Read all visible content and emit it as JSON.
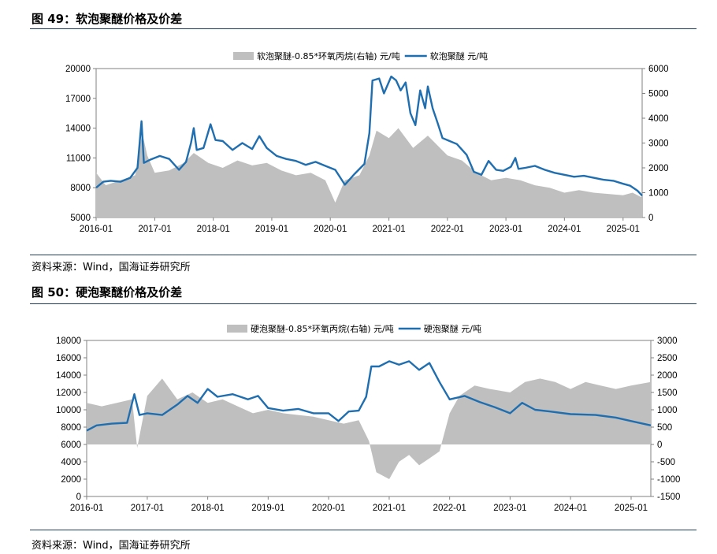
{
  "figures": [
    {
      "title": "图 49：软泡聚醚价格及价差",
      "source": "资料来源：Wind，国海证券研究所"
    },
    {
      "title": "图 50：硬泡聚醚价格及价差",
      "source": "资料来源：Wind，国海证券研究所"
    }
  ],
  "colors": {
    "area": "#bfbfbf",
    "line": "#1f6eb0",
    "rule": "#1f3a5f"
  },
  "chart_data": [
    {
      "type": "line",
      "x_ticks": [
        "2016-01",
        "2017-01",
        "2018-01",
        "2019-01",
        "2020-01",
        "2021-01",
        "2022-01",
        "2023-01",
        "2024-01",
        "2025-01"
      ],
      "x_range": [
        "2016-01-01",
        "2025-04-30"
      ],
      "y_left": {
        "min": 5000,
        "max": 20000,
        "ticks": [
          5000,
          8000,
          11000,
          14000,
          17000,
          20000
        ]
      },
      "y_right": {
        "min": 0,
        "max": 6000,
        "ticks": [
          0,
          1000,
          2000,
          3000,
          4000,
          5000,
          6000
        ]
      },
      "legend_position": "top-center",
      "series": [
        {
          "name": "软泡聚醚-0.85*环氧丙烷(右轴) 元/吨",
          "kind": "area",
          "axis": "right",
          "points": [
            [
              "2016-01-01",
              1800
            ],
            [
              "2016-03-01",
              1300
            ],
            [
              "2016-06-01",
              1500
            ],
            [
              "2016-09-01",
              1700
            ],
            [
              "2016-10-15",
              3400
            ],
            [
              "2016-11-15",
              2500
            ],
            [
              "2017-01-01",
              1800
            ],
            [
              "2017-04-01",
              1900
            ],
            [
              "2017-07-01",
              2200
            ],
            [
              "2017-09-01",
              2600
            ],
            [
              "2017-12-01",
              2200
            ],
            [
              "2018-03-01",
              2000
            ],
            [
              "2018-06-01",
              2300
            ],
            [
              "2018-09-01",
              2100
            ],
            [
              "2018-12-01",
              2200
            ],
            [
              "2019-03-01",
              1900
            ],
            [
              "2019-06-01",
              1700
            ],
            [
              "2019-09-01",
              1800
            ],
            [
              "2019-12-01",
              1500
            ],
            [
              "2020-02-01",
              600
            ],
            [
              "2020-04-01",
              1500
            ],
            [
              "2020-07-01",
              1700
            ],
            [
              "2020-09-01",
              2500
            ],
            [
              "2020-10-15",
              3500
            ],
            [
              "2021-01-01",
              3200
            ],
            [
              "2021-03-01",
              3600
            ],
            [
              "2021-06-01",
              2800
            ],
            [
              "2021-09-01",
              3300
            ],
            [
              "2021-11-01",
              2900
            ],
            [
              "2022-01-01",
              2500
            ],
            [
              "2022-04-01",
              2300
            ],
            [
              "2022-07-01",
              1800
            ],
            [
              "2022-10-01",
              1500
            ],
            [
              "2023-01-01",
              1600
            ],
            [
              "2023-04-01",
              1500
            ],
            [
              "2023-07-01",
              1300
            ],
            [
              "2023-10-01",
              1200
            ],
            [
              "2024-01-01",
              1000
            ],
            [
              "2024-04-01",
              1100
            ],
            [
              "2024-07-01",
              1000
            ],
            [
              "2024-10-01",
              950
            ],
            [
              "2025-01-01",
              900
            ],
            [
              "2025-03-01",
              1000
            ],
            [
              "2025-04-30",
              800
            ]
          ]
        },
        {
          "name": "软泡聚醚 元/吨",
          "kind": "line",
          "axis": "left",
          "points": [
            [
              "2016-01-01",
              8000
            ],
            [
              "2016-02-15",
              8600
            ],
            [
              "2016-04-01",
              8700
            ],
            [
              "2016-06-01",
              8600
            ],
            [
              "2016-08-01",
              9000
            ],
            [
              "2016-09-15",
              10000
            ],
            [
              "2016-10-10",
              14700
            ],
            [
              "2016-10-25",
              10500
            ],
            [
              "2016-12-01",
              10800
            ],
            [
              "2017-02-01",
              11200
            ],
            [
              "2017-04-01",
              10900
            ],
            [
              "2017-06-01",
              9800
            ],
            [
              "2017-07-15",
              10600
            ],
            [
              "2017-08-15",
              12500
            ],
            [
              "2017-09-01",
              14000
            ],
            [
              "2017-09-20",
              11800
            ],
            [
              "2017-11-01",
              12000
            ],
            [
              "2017-12-15",
              14400
            ],
            [
              "2018-01-15",
              12800
            ],
            [
              "2018-03-01",
              12700
            ],
            [
              "2018-05-01",
              11800
            ],
            [
              "2018-07-01",
              12500
            ],
            [
              "2018-09-01",
              11900
            ],
            [
              "2018-10-15",
              13200
            ],
            [
              "2018-12-01",
              12000
            ],
            [
              "2019-02-01",
              11200
            ],
            [
              "2019-04-01",
              10900
            ],
            [
              "2019-06-01",
              10700
            ],
            [
              "2019-08-01",
              10300
            ],
            [
              "2019-10-01",
              10600
            ],
            [
              "2019-12-01",
              10200
            ],
            [
              "2020-02-01",
              9800
            ],
            [
              "2020-04-01",
              8300
            ],
            [
              "2020-06-01",
              9400
            ],
            [
              "2020-08-01",
              10400
            ],
            [
              "2020-09-01",
              13500
            ],
            [
              "2020-09-20",
              18800
            ],
            [
              "2020-11-01",
              19000
            ],
            [
              "2020-12-01",
              17500
            ],
            [
              "2021-01-15",
              19200
            ],
            [
              "2021-02-15",
              18800
            ],
            [
              "2021-03-15",
              17800
            ],
            [
              "2021-04-15",
              18600
            ],
            [
              "2021-05-15",
              15500
            ],
            [
              "2021-06-15",
              14300
            ],
            [
              "2021-07-15",
              17800
            ],
            [
              "2021-08-15",
              16000
            ],
            [
              "2021-09-01",
              18200
            ],
            [
              "2021-10-01",
              16000
            ],
            [
              "2021-11-01",
              14500
            ],
            [
              "2021-12-01",
              13000
            ],
            [
              "2022-01-15",
              12700
            ],
            [
              "2022-03-01",
              12400
            ],
            [
              "2022-05-01",
              11300
            ],
            [
              "2022-06-15",
              9600
            ],
            [
              "2022-08-01",
              9300
            ],
            [
              "2022-09-15",
              10700
            ],
            [
              "2022-11-01",
              9800
            ],
            [
              "2022-12-15",
              9700
            ],
            [
              "2023-02-01",
              10100
            ],
            [
              "2023-03-01",
              11000
            ],
            [
              "2023-03-20",
              9900
            ],
            [
              "2023-05-01",
              10000
            ],
            [
              "2023-07-01",
              10200
            ],
            [
              "2023-09-01",
              9800
            ],
            [
              "2023-11-01",
              9500
            ],
            [
              "2024-01-01",
              9300
            ],
            [
              "2024-03-01",
              9100
            ],
            [
              "2024-05-01",
              9200
            ],
            [
              "2024-07-01",
              9000
            ],
            [
              "2024-09-01",
              8800
            ],
            [
              "2024-11-01",
              8700
            ],
            [
              "2025-01-01",
              8400
            ],
            [
              "2025-02-15",
              8200
            ],
            [
              "2025-04-01",
              7700
            ],
            [
              "2025-04-30",
              7200
            ]
          ]
        }
      ]
    },
    {
      "type": "line",
      "x_ticks": [
        "2016-01",
        "2017-01",
        "2018-01",
        "2019-01",
        "2020-01",
        "2021-01",
        "2022-01",
        "2023-01",
        "2024-01",
        "2025-01"
      ],
      "x_range": [
        "2016-01-01",
        "2025-04-30"
      ],
      "y_left": {
        "min": 0,
        "max": 18000,
        "ticks": [
          0,
          2000,
          4000,
          6000,
          8000,
          10000,
          12000,
          14000,
          16000,
          18000
        ]
      },
      "y_right": {
        "min": -1500,
        "max": 3000,
        "ticks": [
          -1500,
          -1000,
          -500,
          0,
          500,
          1000,
          1500,
          2000,
          2500,
          3000
        ]
      },
      "legend_position": "top-center",
      "series": [
        {
          "name": "硬泡聚醚-0.85*环氧丙烷(右轴) 元/吨",
          "kind": "area",
          "axis": "right",
          "points": [
            [
              "2016-01-01",
              1200
            ],
            [
              "2016-04-01",
              1100
            ],
            [
              "2016-07-01",
              1200
            ],
            [
              "2016-10-01",
              1300
            ],
            [
              "2016-11-01",
              -100
            ],
            [
              "2017-01-01",
              1400
            ],
            [
              "2017-04-01",
              1900
            ],
            [
              "2017-07-01",
              1300
            ],
            [
              "2017-10-01",
              1500
            ],
            [
              "2018-01-01",
              1200
            ],
            [
              "2018-04-01",
              1300
            ],
            [
              "2018-07-01",
              1100
            ],
            [
              "2018-10-01",
              900
            ],
            [
              "2019-01-01",
              1000
            ],
            [
              "2019-04-01",
              900
            ],
            [
              "2019-07-01",
              850
            ],
            [
              "2019-10-01",
              800
            ],
            [
              "2020-01-01",
              700
            ],
            [
              "2020-04-01",
              600
            ],
            [
              "2020-07-01",
              700
            ],
            [
              "2020-09-01",
              100
            ],
            [
              "2020-10-15",
              -800
            ],
            [
              "2021-01-01",
              -1000
            ],
            [
              "2021-03-01",
              -500
            ],
            [
              "2021-05-01",
              -300
            ],
            [
              "2021-07-01",
              -600
            ],
            [
              "2021-09-01",
              -400
            ],
            [
              "2021-11-01",
              -200
            ],
            [
              "2022-01-01",
              900
            ],
            [
              "2022-03-01",
              1400
            ],
            [
              "2022-06-01",
              1700
            ],
            [
              "2022-09-01",
              1600
            ],
            [
              "2023-01-01",
              1500
            ],
            [
              "2023-04-01",
              1800
            ],
            [
              "2023-07-01",
              1900
            ],
            [
              "2023-10-01",
              1800
            ],
            [
              "2024-01-01",
              1600
            ],
            [
              "2024-04-01",
              1800
            ],
            [
              "2024-07-01",
              1700
            ],
            [
              "2024-10-01",
              1600
            ],
            [
              "2025-01-01",
              1700
            ],
            [
              "2025-04-30",
              1800
            ]
          ]
        },
        {
          "name": "硬泡聚醚 元/吨",
          "kind": "line",
          "axis": "right_left",
          "axis_note": "left",
          "points": [
            [
              "2016-01-01",
              7600
            ],
            [
              "2016-03-01",
              8200
            ],
            [
              "2016-06-01",
              8400
            ],
            [
              "2016-09-01",
              8500
            ],
            [
              "2016-10-15",
              11800
            ],
            [
              "2016-11-15",
              9400
            ],
            [
              "2017-01-01",
              9600
            ],
            [
              "2017-04-01",
              9400
            ],
            [
              "2017-07-01",
              10600
            ],
            [
              "2017-09-01",
              11600
            ],
            [
              "2017-11-01",
              10800
            ],
            [
              "2018-01-01",
              12400
            ],
            [
              "2018-03-01",
              11500
            ],
            [
              "2018-06-01",
              11800
            ],
            [
              "2018-09-01",
              11200
            ],
            [
              "2018-11-01",
              11600
            ],
            [
              "2019-01-01",
              10200
            ],
            [
              "2019-04-01",
              9900
            ],
            [
              "2019-07-01",
              10100
            ],
            [
              "2019-10-01",
              9600
            ],
            [
              "2020-01-01",
              9600
            ],
            [
              "2020-03-01",
              8700
            ],
            [
              "2020-05-01",
              9800
            ],
            [
              "2020-07-01",
              9900
            ],
            [
              "2020-08-15",
              11500
            ],
            [
              "2020-09-15",
              15000
            ],
            [
              "2020-11-01",
              15000
            ],
            [
              "2021-01-01",
              15600
            ],
            [
              "2021-03-01",
              15200
            ],
            [
              "2021-05-01",
              15600
            ],
            [
              "2021-07-01",
              14600
            ],
            [
              "2021-09-01",
              15400
            ],
            [
              "2021-11-01",
              13200
            ],
            [
              "2022-01-01",
              11200
            ],
            [
              "2022-04-01",
              11600
            ],
            [
              "2022-07-01",
              10900
            ],
            [
              "2022-10-01",
              10300
            ],
            [
              "2023-01-01",
              9600
            ],
            [
              "2023-03-15",
              10800
            ],
            [
              "2023-06-01",
              10000
            ],
            [
              "2023-09-01",
              9800
            ],
            [
              "2024-01-01",
              9500
            ],
            [
              "2024-06-01",
              9400
            ],
            [
              "2024-10-01",
              9100
            ],
            [
              "2025-01-01",
              8700
            ],
            [
              "2025-04-30",
              8200
            ]
          ]
        }
      ]
    }
  ]
}
